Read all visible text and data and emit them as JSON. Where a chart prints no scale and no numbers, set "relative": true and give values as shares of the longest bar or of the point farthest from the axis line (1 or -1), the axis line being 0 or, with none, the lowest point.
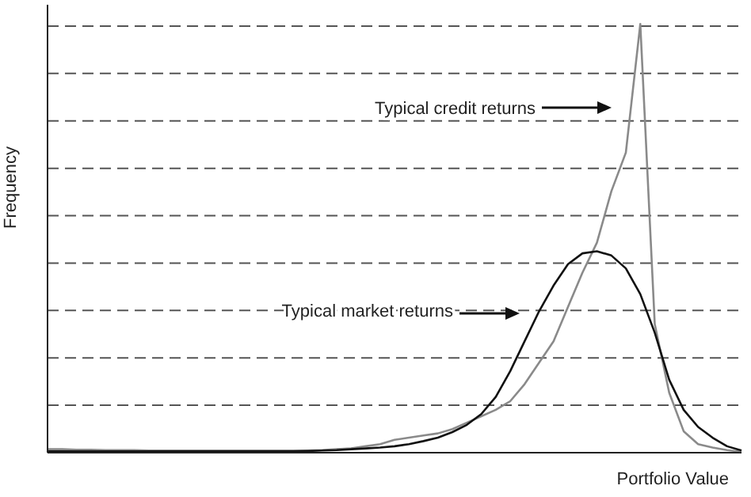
{
  "chart_data": {
    "type": "line",
    "relative": true,
    "xlabel": "Portfolio Value",
    "ylabel": "Frequency",
    "grid": "y",
    "line_style": "solid",
    "marker": "none",
    "categories": [
      null,
      null,
      null,
      null,
      null,
      null,
      null,
      null,
      null,
      null,
      null,
      null,
      null,
      null,
      null,
      null,
      null,
      null,
      null,
      null,
      null,
      null,
      null,
      null,
      null,
      null,
      null,
      null,
      null,
      null,
      null,
      null,
      null,
      null,
      null,
      null,
      null,
      null,
      null,
      null,
      null,
      null,
      null,
      null,
      null,
      null,
      null,
      null,
      null
    ],
    "series": [
      {
        "color": "#8a8a8a",
        "values": [
          0.008,
          0.008,
          0.007,
          0.007,
          0.006,
          0.006,
          0.006,
          0.005,
          0.005,
          0.005,
          0.005,
          0.005,
          0.005,
          0.005,
          0.005,
          0.005,
          0.005,
          0.005,
          0.005,
          0.006,
          0.008,
          0.01,
          0.015,
          0.02,
          0.03,
          0.035,
          0.04,
          0.045,
          0.055,
          0.07,
          0.085,
          0.1,
          0.12,
          0.16,
          0.21,
          0.26,
          0.34,
          0.42,
          0.49,
          0.61,
          0.7,
          1.0,
          0.3,
          0.14,
          0.05,
          0.02,
          0.012,
          0.006,
          0.002
        ]
      },
      {
        "color": "#111111",
        "values": [
          0.003,
          0.003,
          0.003,
          0.003,
          0.003,
          0.003,
          0.003,
          0.003,
          0.003,
          0.003,
          0.003,
          0.003,
          0.003,
          0.003,
          0.003,
          0.003,
          0.003,
          0.003,
          0.004,
          0.005,
          0.006,
          0.008,
          0.01,
          0.012,
          0.015,
          0.02,
          0.027,
          0.035,
          0.048,
          0.065,
          0.09,
          0.13,
          0.19,
          0.26,
          0.33,
          0.39,
          0.44,
          0.465,
          0.47,
          0.46,
          0.43,
          0.37,
          0.28,
          0.17,
          0.1,
          0.06,
          0.035,
          0.015,
          0.005
        ]
      }
    ],
    "annotations": [
      "Typical credit returns",
      "Typical market returns"
    ]
  }
}
